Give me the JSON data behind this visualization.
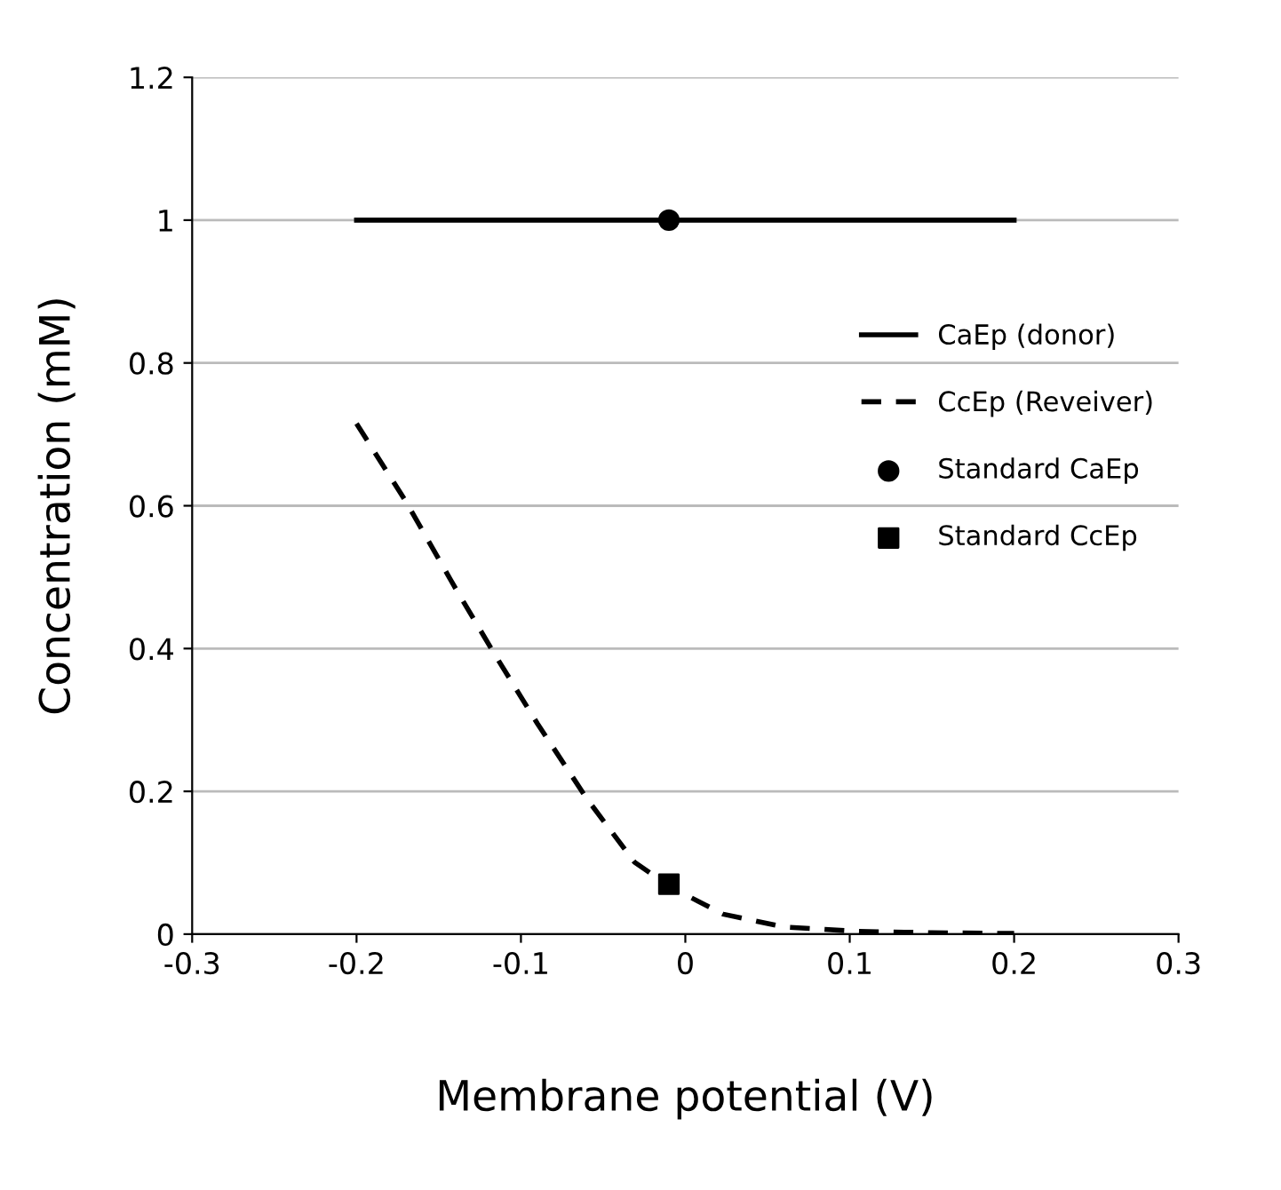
{
  "chart_data": {
    "type": "line",
    "xlabel": "Membrane potential (V)",
    "ylabel": "Concentration (mM)",
    "xlim": [
      -0.3,
      0.3
    ],
    "xticks": [
      -0.3,
      -0.2,
      -0.1,
      0,
      0.1,
      0.2,
      0.3
    ],
    "ylim": [
      0,
      1.2
    ],
    "yticks": [
      0,
      0.2,
      0.4,
      0.6,
      0.8,
      1,
      1.2
    ],
    "grid": "y",
    "legend": "right",
    "series": [
      {
        "name": "CaEp (donor)",
        "color": "#000000",
        "line_style": "solid",
        "marker": "none",
        "x": [
          -0.2,
          0.2
        ],
        "values": [
          1,
          1
        ]
      },
      {
        "name": "CcEp (Reveiver)",
        "color": "#000000",
        "line_style": "dashed",
        "marker": "none",
        "x": [
          -0.2,
          -0.17,
          -0.141,
          -0.116,
          -0.09,
          -0.06,
          -0.031,
          -0.009,
          0.023,
          0.06,
          0.104,
          0.15,
          0.2
        ],
        "values": [
          0.715,
          0.606,
          0.489,
          0.392,
          0.295,
          0.19,
          0.101,
          0.066,
          0.028,
          0.01,
          0.004,
          0.002,
          0.001
        ]
      },
      {
        "name": "Standard CaEp",
        "type": "scatter",
        "color": "#000000",
        "marker": "circle",
        "x": [
          -0.01
        ],
        "values": [
          1.0
        ]
      },
      {
        "name": "Standard CcEp",
        "type": "scatter",
        "color": "#000000",
        "marker": "square",
        "x": [
          -0.01
        ],
        "values": [
          0.07
        ]
      }
    ]
  }
}
